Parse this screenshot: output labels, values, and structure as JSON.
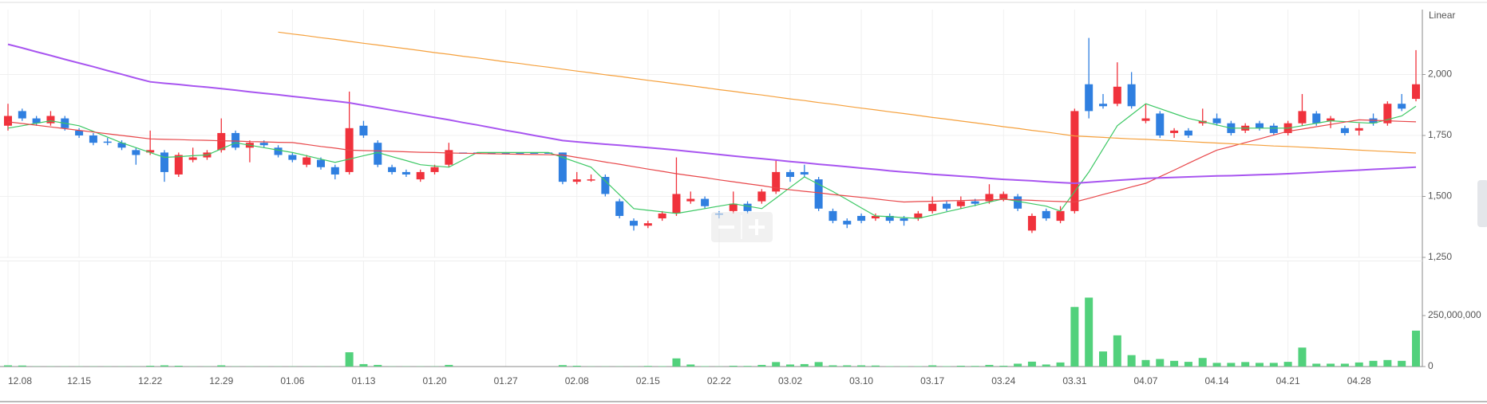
{
  "chart_data": {
    "type": "candlestick",
    "scale_label": "Linear",
    "categories": [
      "12.08",
      null,
      null,
      null,
      null,
      "12.15",
      null,
      null,
      null,
      null,
      "12.22",
      null,
      null,
      null,
      null,
      "12.29",
      null,
      null,
      null,
      null,
      "01.06",
      null,
      null,
      null,
      null,
      "01.13",
      null,
      null,
      null,
      null,
      "01.20",
      null,
      null,
      null,
      null,
      "01.27",
      null,
      null,
      null,
      null,
      "02.08",
      null,
      null,
      null,
      null,
      "02.15",
      null,
      null,
      null,
      null,
      "02.22",
      null,
      null,
      null,
      null,
      "03.02",
      null,
      null,
      null,
      null,
      "03.10",
      null,
      null,
      null,
      null,
      "03.17",
      null,
      null,
      null,
      null,
      "03.24",
      null,
      null,
      null,
      null,
      "03.31",
      null,
      null,
      null,
      null,
      "04.07",
      null,
      null,
      null,
      null,
      "04.14",
      null,
      null,
      null,
      null,
      "04.21",
      null,
      null,
      null,
      null,
      "04.28",
      null,
      null,
      null,
      null
    ],
    "open": [
      1790,
      1850,
      1820,
      1800,
      1820,
      1770,
      1750,
      1725,
      1720,
      1690,
      1680,
      1680,
      1590,
      1650,
      1660,
      1690,
      1760,
      1700,
      1720,
      1700,
      1670,
      1630,
      1650,
      1620,
      1600,
      1790,
      1720,
      1620,
      1600,
      1570,
      1600,
      1630,
      1680,
      1680,
      1680,
      1680,
      1680,
      1680,
      1680,
      1680,
      1560,
      1565,
      1580,
      1480,
      1400,
      1380,
      1410,
      1430,
      1480,
      1490,
      1430,
      1440,
      1470,
      1480,
      1520,
      1600,
      1600,
      1570,
      1440,
      1400,
      1420,
      1410,
      1420,
      1410,
      1410,
      1440,
      1470,
      1460,
      1480,
      1480,
      1490,
      1500,
      1360,
      1440,
      1400,
      1440,
      1960,
      1880,
      1880,
      1960,
      1810,
      1840,
      1760,
      1770,
      1800,
      1820,
      1800,
      1770,
      1800,
      1790,
      1760,
      1800,
      1840,
      1810,
      1780,
      1770,
      1820,
      1800,
      1880,
      1900
    ],
    "high": [
      1880,
      1860,
      1830,
      1850,
      1830,
      1780,
      1760,
      1740,
      1730,
      1700,
      1770,
      1690,
      1680,
      1700,
      1690,
      1820,
      1770,
      1730,
      1730,
      1710,
      1680,
      1670,
      1660,
      1630,
      1930,
      1810,
      1730,
      1630,
      1610,
      1610,
      1630,
      1720,
      1680,
      1680,
      1680,
      1680,
      1680,
      1680,
      1680,
      1680,
      1600,
      1590,
      1590,
      1490,
      1410,
      1400,
      1440,
      1660,
      1520,
      1500,
      1440,
      1520,
      1480,
      1530,
      1650,
      1610,
      1630,
      1580,
      1450,
      1410,
      1430,
      1430,
      1430,
      1420,
      1440,
      1500,
      1480,
      1500,
      1490,
      1550,
      1520,
      1510,
      1430,
      1450,
      1460,
      1860,
      2150,
      1920,
      2050,
      2010,
      1880,
      1850,
      1780,
      1780,
      1860,
      1840,
      1810,
      1800,
      1810,
      1800,
      1810,
      1920,
      1850,
      1830,
      1790,
      1800,
      1840,
      1890,
      1920,
      2100
    ],
    "low": [
      1770,
      1810,
      1790,
      1790,
      1770,
      1740,
      1710,
      1710,
      1690,
      1630,
      1670,
      1560,
      1580,
      1640,
      1650,
      1680,
      1690,
      1640,
      1700,
      1660,
      1640,
      1620,
      1610,
      1570,
      1590,
      1740,
      1620,
      1590,
      1580,
      1560,
      1590,
      1620,
      1680,
      1680,
      1680,
      1680,
      1680,
      1680,
      1680,
      1550,
      1550,
      1560,
      1500,
      1410,
      1360,
      1370,
      1400,
      1420,
      1470,
      1450,
      1410,
      1430,
      1430,
      1470,
      1510,
      1560,
      1580,
      1440,
      1390,
      1370,
      1390,
      1400,
      1390,
      1380,
      1400,
      1430,
      1440,
      1450,
      1460,
      1470,
      1480,
      1440,
      1350,
      1400,
      1390,
      1430,
      1820,
      1860,
      1870,
      1860,
      1800,
      1740,
      1740,
      1740,
      1790,
      1790,
      1750,
      1760,
      1770,
      1750,
      1750,
      1790,
      1790,
      1780,
      1750,
      1750,
      1790,
      1790,
      1850,
      1890
    ],
    "close": [
      1830,
      1820,
      1800,
      1830,
      1780,
      1750,
      1720,
      1720,
      1700,
      1670,
      1690,
      1600,
      1670,
      1660,
      1680,
      1760,
      1700,
      1720,
      1710,
      1670,
      1650,
      1660,
      1620,
      1590,
      1780,
      1750,
      1630,
      1600,
      1590,
      1600,
      1620,
      1690,
      1680,
      1680,
      1680,
      1680,
      1680,
      1680,
      1680,
      1560,
      1570,
      1570,
      1510,
      1420,
      1380,
      1390,
      1430,
      1510,
      1490,
      1460,
      1425,
      1470,
      1440,
      1520,
      1600,
      1580,
      1590,
      1450,
      1400,
      1385,
      1400,
      1420,
      1400,
      1400,
      1430,
      1470,
      1450,
      1480,
      1470,
      1510,
      1510,
      1450,
      1420,
      1410,
      1440,
      1850,
      1850,
      1870,
      1950,
      1870,
      1820,
      1750,
      1770,
      1750,
      1810,
      1800,
      1760,
      1790,
      1780,
      1760,
      1800,
      1850,
      1800,
      1820,
      1760,
      1780,
      1800,
      1880,
      1860,
      1960
    ],
    "up_color": "#f0323c",
    "down_color": "#2f7fe0",
    "ylim": [
      1250,
      2250
    ],
    "yticks": [
      {
        "value": 1250,
        "label": "1,250"
      },
      {
        "value": 1500,
        "label": "1,500"
      },
      {
        "value": 1750,
        "label": "1,750"
      },
      {
        "value": 2000,
        "label": "2,000"
      }
    ],
    "grid": true,
    "lines": [
      {
        "color": "#3cc864",
        "values": [
          1780,
          1790,
          1800,
          1810,
          1800,
          1790,
          1767,
          1743,
          1720,
          1700,
          1680,
          1660,
          1663,
          1667,
          1670,
          1695,
          1720,
          1710,
          1700,
          1690,
          1680,
          1667,
          1653,
          1640,
          1653,
          1667,
          1680,
          1663,
          1647,
          1630,
          1625,
          1620,
          1650,
          1680,
          1680,
          1680,
          1680,
          1680,
          1680,
          1660,
          1640,
          1620,
          1563,
          1507,
          1450,
          1443,
          1437,
          1430,
          1440,
          1450,
          1460,
          1470,
          1460,
          1450,
          1493,
          1537,
          1580,
          1550,
          1520,
          1487,
          1453,
          1420,
          1417,
          1413,
          1410,
          1423,
          1437,
          1450,
          1463,
          1477,
          1490,
          1480,
          1470,
          1460,
          1440,
          1520,
          1600,
          1695,
          1790,
          1835,
          1880,
          1860,
          1840,
          1820,
          1807,
          1793,
          1780,
          1780,
          1780,
          1780,
          1780,
          1790,
          1800,
          1810,
          1807,
          1803,
          1800,
          1815,
          1830,
          1870
        ]
      },
      {
        "color": "#e8474a",
        "values": [
          1806,
          1799,
          1792,
          1785,
          1778,
          1771,
          1764,
          1757,
          1750,
          1743,
          1736,
          1734,
          1733,
          1731,
          1730,
          1728,
          1727,
          1725,
          1724,
          1722,
          1721,
          1713,
          1705,
          1698,
          1690,
          1688,
          1687,
          1685,
          1683,
          1681,
          1680,
          1678,
          1677,
          1676,
          1675,
          1674,
          1673,
          1672,
          1671,
          1670,
          1660,
          1651,
          1641,
          1632,
          1622,
          1612,
          1603,
          1593,
          1585,
          1577,
          1568,
          1560,
          1552,
          1544,
          1535,
          1527,
          1521,
          1515,
          1508,
          1502,
          1496,
          1490,
          1483,
          1477,
          1479,
          1480,
          1482,
          1483,
          1485,
          1486,
          1488,
          1486,
          1484,
          1481,
          1479,
          1477,
          1492,
          1508,
          1523,
          1539,
          1554,
          1581,
          1608,
          1636,
          1663,
          1690,
          1705,
          1721,
          1736,
          1752,
          1767,
          1776,
          1786,
          1795,
          1805,
          1814,
          1812,
          1810,
          1808,
          1806
        ]
      },
      {
        "color": "#a855f0",
        "values": [
          2124,
          2109,
          2093,
          2078,
          2062,
          2047,
          2032,
          2016,
          2001,
          1985,
          1970,
          1964,
          1959,
          1953,
          1948,
          1942,
          1936,
          1929,
          1923,
          1917,
          1910,
          1904,
          1897,
          1891,
          1884,
          1874,
          1864,
          1854,
          1844,
          1834,
          1824,
          1814,
          1803,
          1793,
          1782,
          1771,
          1761,
          1750,
          1740,
          1729,
          1724,
          1719,
          1714,
          1710,
          1705,
          1700,
          1695,
          1690,
          1684,
          1678,
          1672,
          1666,
          1660,
          1655,
          1649,
          1643,
          1638,
          1632,
          1627,
          1622,
          1616,
          1611,
          1605,
          1600,
          1596,
          1591,
          1587,
          1583,
          1579,
          1574,
          1570,
          1567,
          1564,
          1560,
          1557,
          1554,
          1558,
          1562,
          1566,
          1570,
          1574,
          1576,
          1578,
          1580,
          1582,
          1584,
          1585,
          1587,
          1589,
          1591,
          1593,
          1596,
          1599,
          1602,
          1605,
          1608,
          1611,
          1614,
          1617,
          1620
        ]
      },
      {
        "color": "#f5a03c",
        "values": [
          null,
          null,
          null,
          null,
          null,
          null,
          null,
          null,
          null,
          null,
          null,
          null,
          null,
          null,
          null,
          null,
          null,
          null,
          null,
          2174,
          2166,
          2159,
          2151,
          2144,
          2136,
          2128,
          2121,
          2113,
          2106,
          2098,
          2090,
          2083,
          2075,
          2068,
          2060,
          2052,
          2045,
          2037,
          2030,
          2022,
          2014,
          2007,
          1999,
          1992,
          1984,
          1976,
          1969,
          1961,
          1954,
          1946,
          1938,
          1931,
          1923,
          1916,
          1908,
          1900,
          1893,
          1885,
          1878,
          1870,
          1862,
          1855,
          1847,
          1840,
          1832,
          1824,
          1817,
          1809,
          1802,
          1794,
          1786,
          1779,
          1771,
          1764,
          1756,
          1748,
          1745,
          1742,
          1739,
          1736,
          1734,
          1731,
          1728,
          1725,
          1722,
          1719,
          1716,
          1713,
          1710,
          1707,
          1705,
          1702,
          1699,
          1696,
          1693,
          1690,
          1687,
          1684,
          1681,
          1678
        ]
      }
    ],
    "volume": {
      "color": "#52d17c",
      "ylim": [
        0,
        500000000
      ],
      "yticks": [
        0,
        {
          "value": 250000000,
          "label": "250,000,000"
        }
      ],
      "values": [
        6000000,
        5000000,
        1000000,
        1000000,
        1000000,
        1000000,
        1000000,
        1000000,
        1000000,
        1000000,
        4000000,
        6000000,
        4000000,
        1000000,
        1000000,
        6000000,
        1000000,
        1000000,
        1000000,
        1000000,
        1000000,
        1000000,
        1000000,
        1000000,
        70000000,
        12000000,
        8000000,
        1000000,
        1000000,
        1000000,
        1000000,
        8000000,
        0,
        0,
        0,
        0,
        0,
        0,
        0,
        7000000,
        4000000,
        1000000,
        1000000,
        1000000,
        1000000,
        3000000,
        2000000,
        40000000,
        10000000,
        2000000,
        1000000,
        4000000,
        3000000,
        8000000,
        22000000,
        10000000,
        12000000,
        22000000,
        6000000,
        6000000,
        6000000,
        5000000,
        2000000,
        2000000,
        2000000,
        6000000,
        2000000,
        4000000,
        3000000,
        8000000,
        4000000,
        14000000,
        24000000,
        10000000,
        20000000,
        292000000,
        338000000,
        74000000,
        153000000,
        56000000,
        32000000,
        37000000,
        28000000,
        23000000,
        42000000,
        18000000,
        18000000,
        22000000,
        18000000,
        18000000,
        23000000,
        93000000,
        14000000,
        14000000,
        14000000,
        20000000,
        28000000,
        32000000,
        28000000,
        176000000
      ]
    }
  }
}
